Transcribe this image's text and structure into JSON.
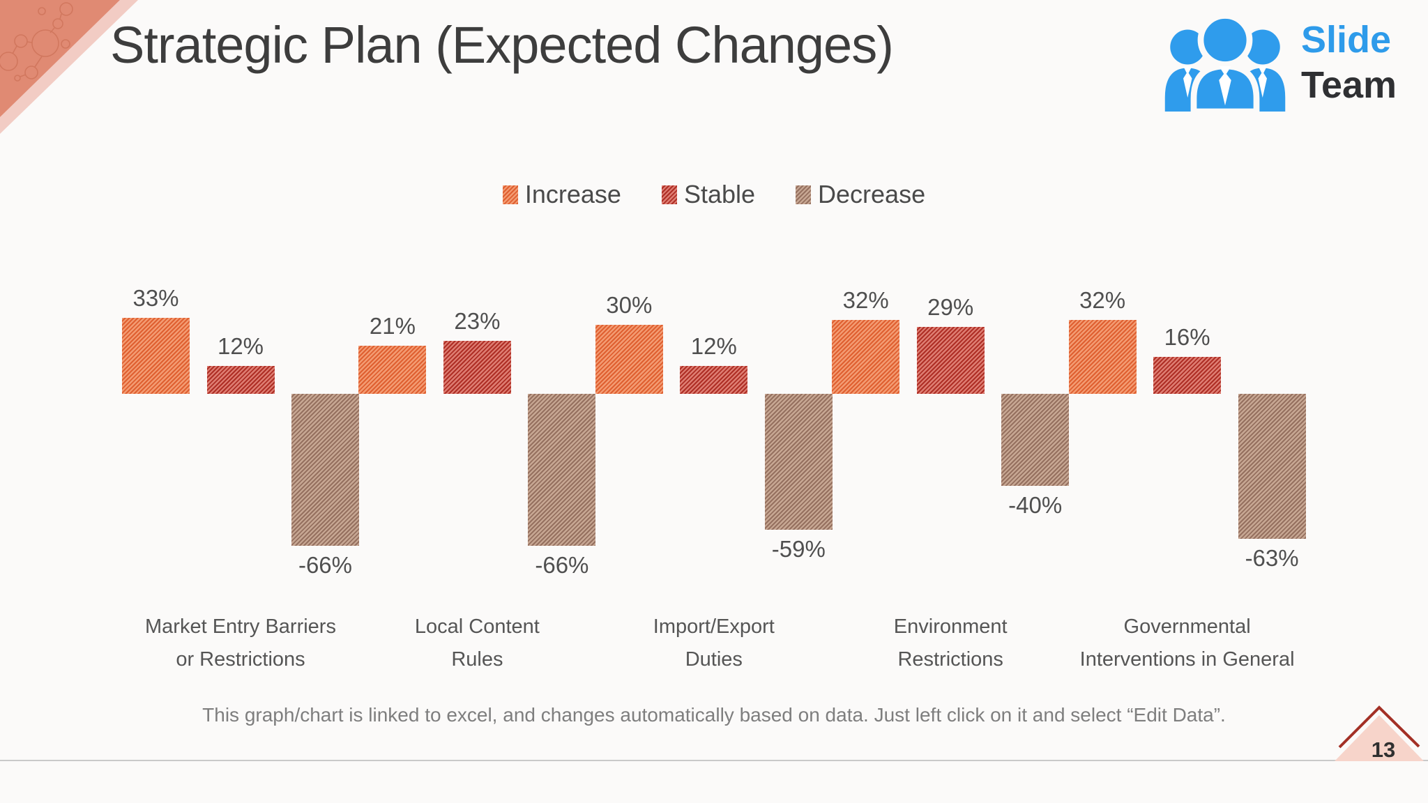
{
  "title": "Strategic Plan (Expected Changes)",
  "logo": {
    "line1": "Slide",
    "line2": "Team",
    "blue": "#2E9BEA",
    "dark": "#2F3033"
  },
  "chart_data": {
    "type": "bar",
    "categories": [
      "Market Entry Barriers\nor Restrictions",
      "Local Content\nRules",
      "Import/Export\nDuties",
      "Environment\nRestrictions",
      "Governmental\nInterventions in General"
    ],
    "series": [
      {
        "name": "Increase",
        "values": [
          33,
          21,
          30,
          32,
          32
        ],
        "base_color": "#F39B72",
        "stripe_color": "#DF5F30"
      },
      {
        "name": "Stable",
        "values": [
          12,
          23,
          12,
          29,
          16
        ],
        "base_color": "#DE7D72",
        "stripe_color": "#AE2E25"
      },
      {
        "name": "Decrease",
        "values": [
          -66,
          -66,
          -59,
          -40,
          -63
        ],
        "base_color": "#C7A793",
        "stripe_color": "#95705F"
      }
    ],
    "value_suffix": "%",
    "data_labels": [
      "33%",
      "12%",
      "-66%",
      "21%",
      "23%",
      "-66%",
      "30%",
      "12%",
      "-59%",
      "32%",
      "29%",
      "-40%",
      "32%",
      "16%",
      "-63%"
    ],
    "legend_position": "top",
    "grid": false,
    "axes_visible": false,
    "ylim": [
      -70,
      40
    ]
  },
  "footer": {
    "note": "This graph/chart is linked to excel, and changes automatically based on data. Just left click on it and select “Edit Data”."
  },
  "page_number": "13"
}
